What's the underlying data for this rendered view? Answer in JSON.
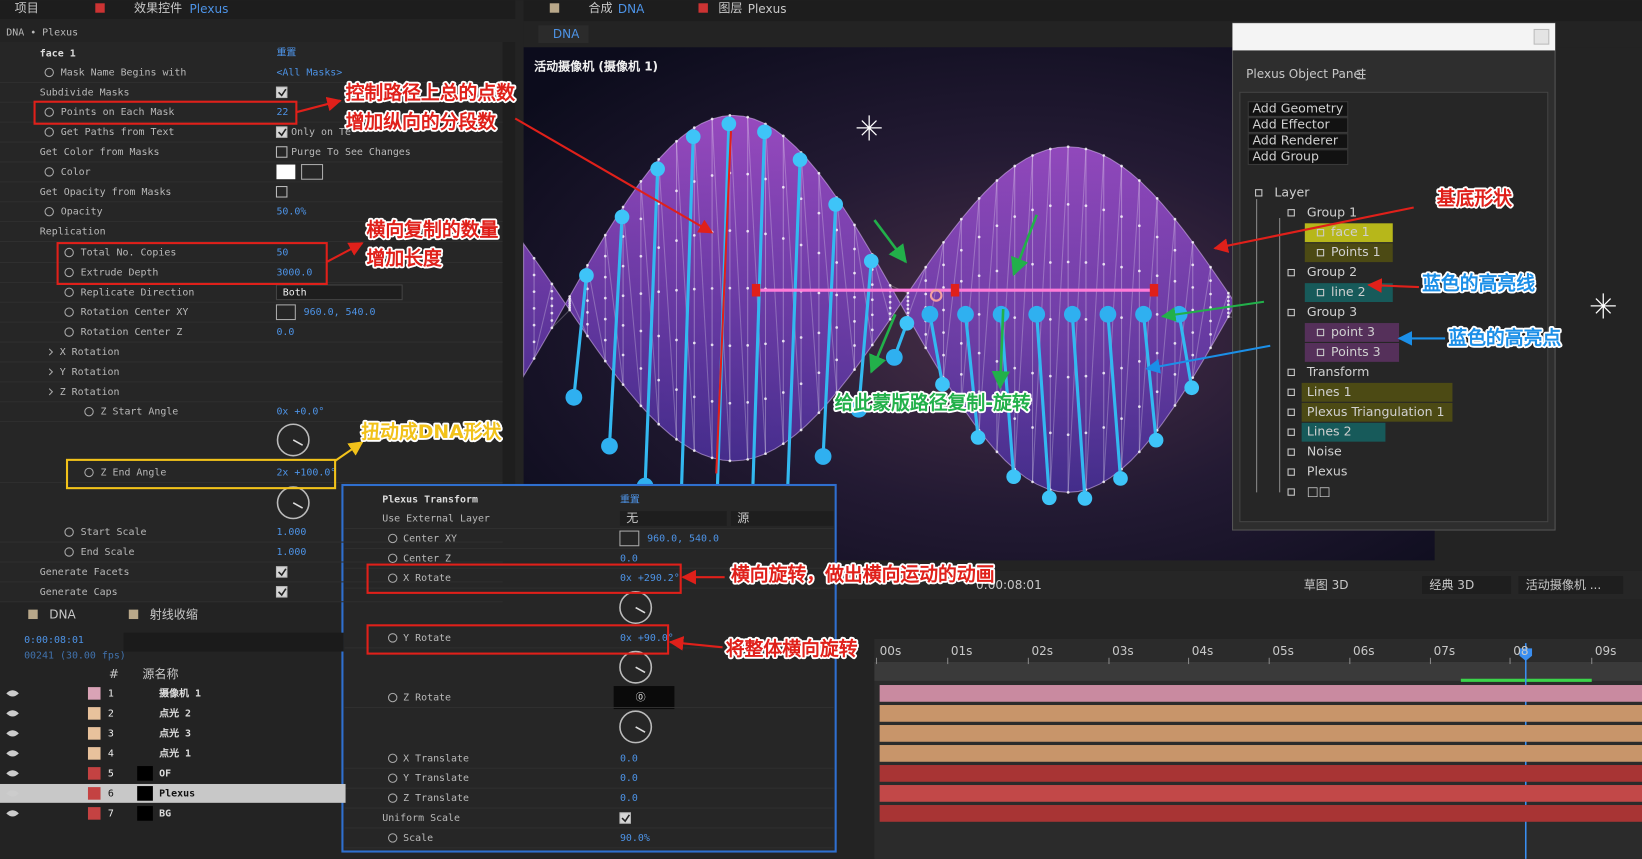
{
  "left_panel": {
    "tabs": {
      "project": "项目",
      "effect_controls": "效果控件",
      "layer": "Plexus"
    },
    "breadcrumb": "DNA • Plexus",
    "effect": {
      "name": "face 1",
      "reset": "重置"
    },
    "rows": [
      {
        "name": "Mask Name Begins with",
        "value": "<All Masks>"
      },
      {
        "name": "Subdivide Masks",
        "checked": true
      },
      {
        "name": "Points on Each Mask",
        "value": "22"
      },
      {
        "name": "Get Paths from Text",
        "checked": true,
        "value": "Only on Te"
      },
      {
        "name": "Get Color from Masks",
        "checked": false,
        "value": "Purge To See Changes"
      },
      {
        "name": "Color"
      },
      {
        "name": "Get Opacity from Masks",
        "checked": false
      },
      {
        "name": "Opacity",
        "value": "50.0%"
      },
      {
        "name": "Replication"
      },
      {
        "name": "Total No. Copies",
        "value": "50"
      },
      {
        "name": "Extrude Depth",
        "value": "3000.0"
      },
      {
        "name": "Replicate Direction",
        "option": "Both"
      },
      {
        "name": "Rotation Center XY",
        "value": "960.0, 540.0"
      },
      {
        "name": "Rotation Center Z",
        "value": "0.0"
      },
      {
        "name": "X Rotation"
      },
      {
        "name": "Y Rotation"
      },
      {
        "name": "Z Rotation"
      },
      {
        "name": "Z Start Angle",
        "value": "0x +0.0°"
      },
      {
        "name": "Z End Angle",
        "value": "2x +100.0°"
      },
      {
        "name": "Start Scale",
        "value": "1.000"
      },
      {
        "name": "End Scale",
        "value": "1.000"
      },
      {
        "name": "Generate Facets",
        "checked": true
      },
      {
        "name": "Generate Caps",
        "checked": true
      }
    ]
  },
  "viewer": {
    "comp_tab": {
      "label": "合成",
      "name": "DNA"
    },
    "layer_tab": {
      "label": "图层",
      "name": "Plexus"
    },
    "subtab": "DNA",
    "camera": "活动摄像机 (摄像机 1)",
    "toolbar": {
      "time": "0:00:08:01",
      "renderer": "草图 3D",
      "mode": "经典 3D",
      "view": "活动摄像机 ..."
    }
  },
  "object_panel": {
    "title": "Plexus Object Panel",
    "buttons": [
      "Add Geometry",
      "Add Effector",
      "Add Renderer",
      "Add Group"
    ],
    "tree": [
      "Layer",
      "Group 1",
      "face 1",
      "Points 1",
      "Group 2",
      "line 2",
      "Group 3",
      "point 3",
      "Points 3",
      "Transform",
      "Lines 1",
      "Plexus Triangulation 1",
      "Lines 2",
      "Noise",
      "Plexus",
      "□□"
    ]
  },
  "transform_panel": {
    "title": "Plexus Transform",
    "reset": "重置",
    "rows": [
      {
        "name": "Use External Layer",
        "option": "无",
        "option2": "源"
      },
      {
        "name": "Center XY",
        "value": "960.0, 540.0"
      },
      {
        "name": "Center Z",
        "value": "0.0"
      },
      {
        "name": "X Rotate",
        "value": "0x +290.2°"
      },
      {
        "name": "Y Rotate",
        "value": "0x +90.0°"
      },
      {
        "name": "Z Rotate"
      },
      {
        "name": "X Translate",
        "value": "0.0"
      },
      {
        "name": "Y Translate",
        "value": "0.0"
      },
      {
        "name": "Z Translate",
        "value": "0.0"
      },
      {
        "name": "Uniform Scale",
        "checked": true
      },
      {
        "name": "Scale",
        "value": "90.0%"
      }
    ]
  },
  "timeline": {
    "tabs": [
      "DNA",
      "射线收缩"
    ],
    "time": "0:00:08:01",
    "frame": "00241 (30.00 fps)",
    "columns": {
      "number": "#",
      "source": "源名称"
    },
    "layers": [
      {
        "number": "1",
        "name": "摄像机 1"
      },
      {
        "number": "2",
        "name": "点光 2"
      },
      {
        "number": "3",
        "name": "点光 3"
      },
      {
        "number": "4",
        "name": "点光 1"
      },
      {
        "number": "5",
        "name": "OF"
      },
      {
        "number": "6",
        "name": "Plexus"
      },
      {
        "number": "7",
        "name": "BG"
      }
    ],
    "ruler": [
      "00s",
      "01s",
      "02s",
      "03s",
      "04s",
      "05s",
      "06s",
      "07s",
      "08",
      "09s"
    ]
  },
  "annotations": [
    "控制路径上总的点数",
    "增加纵向的分段数",
    "横向复制的数量",
    "增加长度",
    "扭动成DNA形状",
    "基底形状",
    "蓝色的高亮线",
    "蓝色的高亮点",
    "给此蒙版路径复制-旋转",
    "横向旋转，做出横向运动的动画",
    "将整体横向旋转"
  ]
}
